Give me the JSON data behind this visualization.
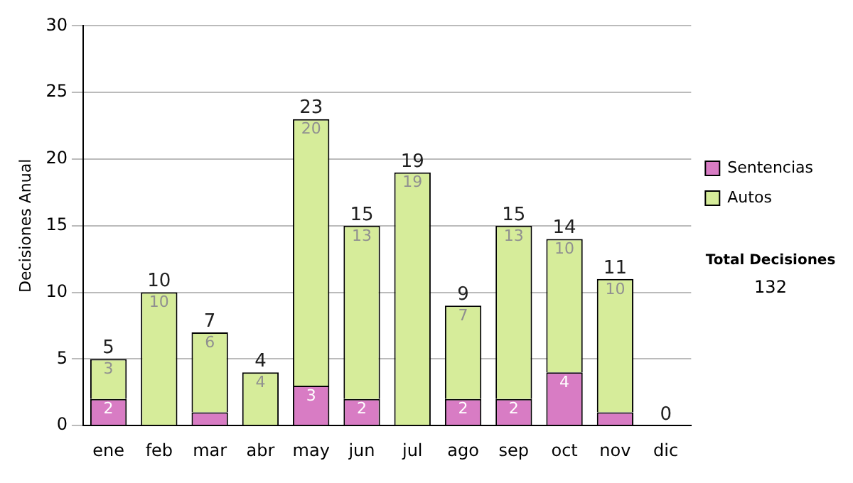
{
  "chart_data": {
    "type": "bar",
    "stacked": true,
    "ylabel": "Decisiones Anual",
    "categories": [
      "ene",
      "feb",
      "mar",
      "abr",
      "may",
      "jun",
      "jul",
      "ago",
      "sep",
      "oct",
      "nov",
      "dic"
    ],
    "series": [
      {
        "name": "Sentencias",
        "color": "#d87cc4",
        "values": [
          2,
          0,
          1,
          0,
          3,
          2,
          0,
          2,
          2,
          4,
          1,
          0
        ],
        "value_labels": [
          "2",
          null,
          null,
          null,
          "3",
          "2",
          null,
          "2",
          "2",
          "4",
          null,
          null
        ]
      },
      {
        "name": "Autos",
        "color": "#d6ec9a",
        "values": [
          3,
          10,
          6,
          4,
          20,
          13,
          19,
          7,
          13,
          10,
          10,
          0
        ],
        "value_labels": [
          "3",
          "10",
          "6",
          "4",
          "20",
          "13",
          "19",
          "7",
          "13",
          "10",
          "10",
          null
        ]
      }
    ],
    "totals": [
      "5",
      "10",
      "7",
      "4",
      "23",
      "15",
      "19",
      "9",
      "15",
      "14",
      "11",
      "0"
    ],
    "ylim": [
      0,
      30
    ],
    "yticks": [
      0,
      5,
      10,
      15,
      20,
      25,
      30
    ],
    "grid": "y",
    "legend": "right",
    "annotations": [
      "Total Decisiones",
      "132"
    ]
  }
}
